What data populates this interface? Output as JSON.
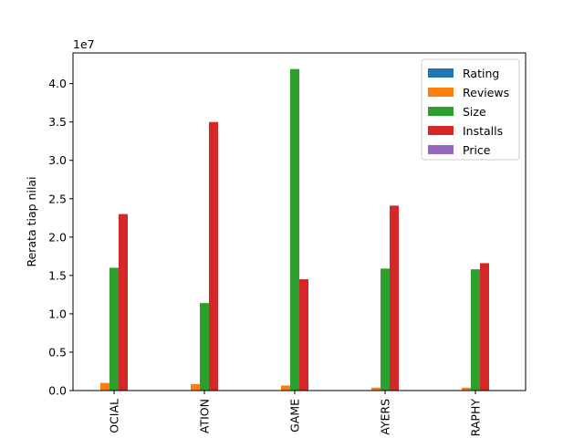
{
  "chart_data": {
    "type": "bar",
    "categories": [
      "OCIAL",
      "ATION",
      "GAME",
      "AYERS",
      "RAPHY"
    ],
    "series": [
      {
        "name": "Rating",
        "color": "#1f77b4",
        "values": [
          4.3,
          4.3,
          4.3,
          4.3,
          4.3
        ]
      },
      {
        "name": "Reviews",
        "color": "#ff7f0e",
        "values": [
          1000000,
          850000,
          650000,
          380000,
          370000
        ]
      },
      {
        "name": "Size",
        "color": "#2ca02c",
        "values": [
          16000000,
          11400000,
          41900000,
          15900000,
          15800000
        ]
      },
      {
        "name": "Installs",
        "color": "#d62728",
        "values": [
          23000000,
          35000000,
          14500000,
          24100000,
          16600000
        ]
      },
      {
        "name": "Price",
        "color": "#9467bd",
        "values": [
          0,
          0,
          0,
          0,
          0
        ]
      }
    ],
    "ylabel": "Rerata tiap nilai",
    "xlabel": "",
    "offset_text": "1e7",
    "y_ticks": [
      0.0,
      0.5,
      1.0,
      1.5,
      2.0,
      2.5,
      3.0,
      3.5,
      4.0
    ],
    "y_tick_labels": [
      "0.0",
      "0.5",
      "1.0",
      "1.5",
      "2.0",
      "2.5",
      "3.0",
      "3.5",
      "4.0"
    ],
    "y_scale": 10000000,
    "ylim": [
      0,
      4.4
    ],
    "legend_position": "top-right",
    "grid": false
  }
}
